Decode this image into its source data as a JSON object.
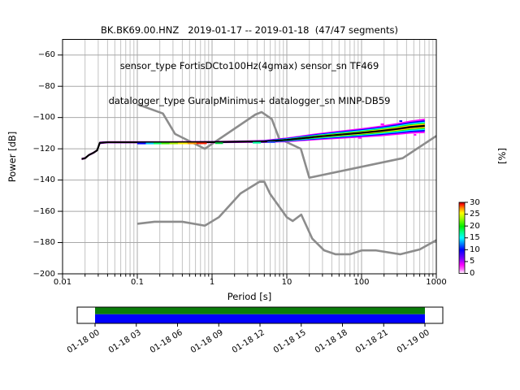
{
  "title": {
    "line1": "BK.BK69.00.HNZ   2019-01-17 -- 2019-01-18  (47/47 segments)",
    "line2": "sensor_type FortisDCto100Hz(4gmax) sensor_sn TF469",
    "line3": "datalogger_type GuralpMinimus+ datalogger_sn MINP-DB59"
  },
  "chart_data": {
    "type": "line",
    "description": "ObsPy PPSD probabilistic power spectral density plot with Peterson NHNM/NLNM noise model curves and color-coded PSD probability band",
    "xlabel": "Period [s]",
    "ylabel": "Power [dB]",
    "xscale": "log",
    "xlim": [
      0.01,
      1000
    ],
    "ylim": [
      -200,
      -50
    ],
    "grid": "both",
    "x_ticks": [
      "0.01",
      "0.1",
      "1",
      "10",
      "100",
      "1000"
    ],
    "y_ticks": [
      "−60",
      "−80",
      "−100",
      "−120",
      "−140",
      "−160",
      "−180",
      "−200"
    ],
    "y_tick_values": [
      -60,
      -80,
      -100,
      -120,
      -140,
      -160,
      -180,
      -200
    ],
    "grid_major_color": "#a8a8a8",
    "grid_minor_color": "#c3c3c3",
    "series": [
      {
        "name": "noise-model-high-NHNM",
        "color": "#8c8c8c",
        "t": [
          0.1,
          0.22,
          0.32,
          0.8,
          3.8,
          4.6,
          6.3,
          7.9,
          15.4,
          20.0,
          354.8,
          1000
        ],
        "db": [
          -91.5,
          -97.4,
          -110.5,
          -120.0,
          -98.1,
          -96.5,
          -101.0,
          -113.5,
          -120.0,
          -138.5,
          -126.0,
          -111.8
        ]
      },
      {
        "name": "noise-model-low-NLNM",
        "color": "#8c8c8c",
        "t": [
          0.1,
          0.17,
          0.4,
          0.8,
          1.24,
          2.4,
          4.3,
          5.0,
          6.0,
          10.0,
          12.0,
          15.6,
          21.9,
          31.6,
          45.0,
          70.0,
          101.0,
          154.0,
          328.0,
          600.0,
          1000.0
        ],
        "db": [
          -168.0,
          -166.7,
          -166.7,
          -169.2,
          -163.7,
          -148.6,
          -141.1,
          -141.1,
          -149.0,
          -163.8,
          -166.2,
          -162.1,
          -177.5,
          -185.0,
          -187.5,
          -187.5,
          -185.0,
          -185.0,
          -187.5,
          -184.4,
          -178.5
        ]
      },
      {
        "name": "psd-mode-line",
        "color": "#000000",
        "t": [
          0.018,
          0.02,
          0.0225,
          0.026,
          0.029,
          0.0315,
          0.04,
          0.3,
          1.0,
          3.0,
          5.0,
          10,
          15,
          25,
          50,
          100,
          180,
          300,
          450,
          700
        ],
        "db": [
          -126.5,
          -126.0,
          -124.0,
          -122.5,
          -121.0,
          -116.2,
          -115.8,
          -115.8,
          -115.7,
          -115.4,
          -115.3,
          -114.3,
          -113.4,
          -112.3,
          -111.0,
          -109.8,
          -108.6,
          -107.3,
          -106.1,
          -105.3
        ],
        "halfwidth_db": [
          0.7,
          0.7,
          0.7,
          0.7,
          0.7,
          0.8,
          0.7,
          0.7,
          0.7,
          0.8,
          1.0,
          1.5,
          1.8,
          2.2,
          2.6,
          3.0,
          3.4,
          3.8,
          4.2,
          4.6
        ]
      }
    ],
    "band_layers": [
      {
        "name": "band-0-5pct",
        "color": "#ff00ff",
        "scale": 1.0
      },
      {
        "name": "band-5-10pct",
        "color": "#0000ff",
        "scale": 0.78
      },
      {
        "name": "band-10-15pct",
        "color": "#00ffff",
        "scale": 0.58
      },
      {
        "name": "band-15-20pct",
        "color": "#00dd00",
        "scale": 0.42
      },
      {
        "name": "band-20-25pct",
        "color": "#ffff00",
        "scale": 0.3
      },
      {
        "name": "band-25-28pct",
        "color": "#ff8800",
        "scale": 0.2
      },
      {
        "name": "band-28-30pct",
        "color": "#ff0000",
        "scale": 0.12
      }
    ],
    "speckles": [
      {
        "t1": 0.1,
        "t2": 0.13,
        "color": "#0000ff"
      },
      {
        "t1": 0.13,
        "t2": 0.165,
        "color": "#00ccff"
      },
      {
        "t1": 0.165,
        "t2": 0.21,
        "color": "#00ff66"
      },
      {
        "t1": 0.21,
        "t2": 0.27,
        "color": "#44ee00"
      },
      {
        "t1": 0.27,
        "t2": 0.35,
        "color": "#aaee00"
      },
      {
        "t1": 0.35,
        "t2": 0.47,
        "color": "#ffee00"
      },
      {
        "t1": 0.47,
        "t2": 0.62,
        "color": "#ff9900"
      },
      {
        "t1": 0.62,
        "t2": 0.85,
        "color": "#ff2200"
      },
      {
        "t1": 1.1,
        "t2": 1.4,
        "color": "#00cc44"
      },
      {
        "t1": 3.5,
        "t2": 4.5,
        "color": "#00ffaa"
      },
      {
        "t1": 5.5,
        "t2": 7.0,
        "color": "#3355ff"
      },
      {
        "t1": 90,
        "t2": 100,
        "color": "#ff00ff",
        "dy": 6
      },
      {
        "t1": 180,
        "t2": 200,
        "color": "#ff00ff",
        "dy": -8
      },
      {
        "t1": 320,
        "t2": 350,
        "color": "#0000ff",
        "dy": -9
      },
      {
        "t1": 500,
        "t2": 540,
        "color": "#ff00ff",
        "dy": 10
      }
    ],
    "colorbar": {
      "label": "[%]",
      "tick_values": [
        0,
        5,
        10,
        15,
        20,
        25,
        30
      ],
      "tick_labels": [
        "0",
        "5",
        "10",
        "15",
        "20",
        "25",
        "30"
      ],
      "gradient_bottom_to_top": [
        [
          0.0,
          "#ffffff"
        ],
        [
          0.06,
          "#ff66ff"
        ],
        [
          0.12,
          "#ff00ff"
        ],
        [
          0.2,
          "#8800ff"
        ],
        [
          0.33,
          "#0000ff"
        ],
        [
          0.42,
          "#0088ff"
        ],
        [
          0.5,
          "#00ffff"
        ],
        [
          0.58,
          "#00ff88"
        ],
        [
          0.66,
          "#00ee00"
        ],
        [
          0.78,
          "#aaff00"
        ],
        [
          0.85,
          "#ffff00"
        ],
        [
          0.92,
          "#ff8800"
        ],
        [
          0.97,
          "#ff1100"
        ],
        [
          1.0,
          "#990000"
        ]
      ]
    },
    "timeline": {
      "labels": [
        "01-18 00",
        "01-18 03",
        "01-18 06",
        "01-18 09",
        "01-18 12",
        "01-18 15",
        "01-18 18",
        "01-18 21",
        "01-19 00"
      ],
      "coverage_top_color": "#0a7d0a",
      "coverage_bottom_color": "#0000ff"
    }
  }
}
